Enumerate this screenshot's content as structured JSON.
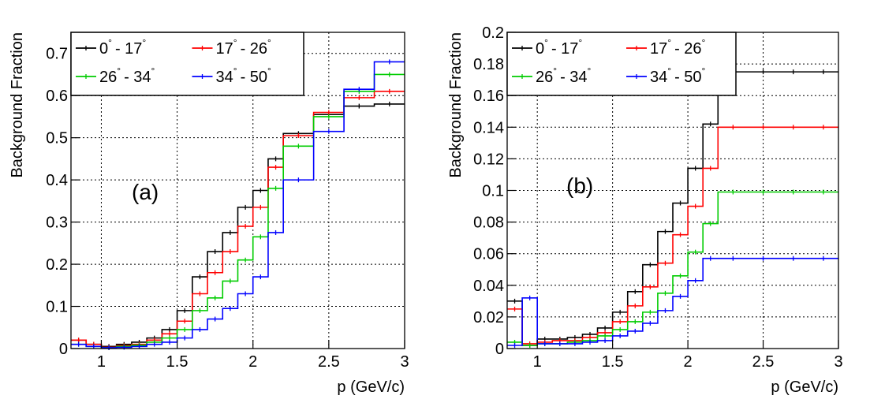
{
  "chart_data": [
    {
      "type": "step",
      "panel_label": "(a)",
      "xlabel": "p (GeV/c)",
      "ylabel": "Background Fraction",
      "xlim": [
        0.8,
        3.0
      ],
      "ylim": [
        0,
        0.75
      ],
      "x_ticks": [
        1,
        1.5,
        2,
        2.5,
        3
      ],
      "x_tick_labels": [
        "1",
        "1.5",
        "2",
        "2.5",
        "3"
      ],
      "y_ticks": [
        0,
        0.1,
        0.2,
        0.3,
        0.4,
        0.5,
        0.6,
        0.7
      ],
      "y_tick_labels": [
        "0",
        "0.1",
        "0.2",
        "0.3",
        "0.4",
        "0.5",
        "0.6",
        "0.7"
      ],
      "grid": true,
      "legend_position": "top-left",
      "bin_edges": [
        0.8,
        0.9,
        1.0,
        1.1,
        1.2,
        1.3,
        1.4,
        1.5,
        1.6,
        1.7,
        1.8,
        1.9,
        2.0,
        2.1,
        2.2,
        2.4,
        2.6,
        2.8,
        3.0
      ],
      "series": [
        {
          "name": "0° - 17°",
          "label_a": "0",
          "label_b": "- 17",
          "color": "#000000",
          "values": [
            0.02,
            0.01,
            0.005,
            0.01,
            0.015,
            0.025,
            0.045,
            0.09,
            0.17,
            0.23,
            0.275,
            0.335,
            0.375,
            0.45,
            0.51,
            0.555,
            0.575,
            0.58
          ]
        },
        {
          "name": "17° - 26°",
          "label_a": "17",
          "label_b": "- 26",
          "color": "#ff0000",
          "values": [
            0.02,
            0.01,
            0.003,
            0.007,
            0.01,
            0.02,
            0.035,
            0.065,
            0.13,
            0.18,
            0.23,
            0.29,
            0.335,
            0.43,
            0.505,
            0.56,
            0.595,
            0.61
          ]
        },
        {
          "name": "26° - 34°",
          "label_a": "26",
          "label_b": "- 34",
          "color": "#00cc00",
          "values": [
            0.01,
            0.005,
            0.002,
            0.005,
            0.008,
            0.015,
            0.025,
            0.045,
            0.09,
            0.12,
            0.16,
            0.21,
            0.265,
            0.38,
            0.48,
            0.55,
            0.61,
            0.65
          ]
        },
        {
          "name": "34° - 50°",
          "label_a": "34",
          "label_b": "- 50",
          "color": "#0000ff",
          "values": [
            0.01,
            0.005,
            0.002,
            0.003,
            0.005,
            0.01,
            0.015,
            0.025,
            0.045,
            0.07,
            0.095,
            0.13,
            0.17,
            0.275,
            0.4,
            0.515,
            0.615,
            0.68
          ]
        }
      ]
    },
    {
      "type": "step",
      "panel_label": "(b)",
      "xlabel": "p (GeV/c)",
      "ylabel": "Background Fraction",
      "xlim": [
        0.8,
        3.0
      ],
      "ylim": [
        0,
        0.2
      ],
      "x_ticks": [
        1,
        1.5,
        2,
        2.5,
        3
      ],
      "x_tick_labels": [
        "1",
        "1.5",
        "2",
        "2.5",
        "3"
      ],
      "y_ticks": [
        0,
        0.02,
        0.04,
        0.06,
        0.08,
        0.1,
        0.12,
        0.14,
        0.16,
        0.18,
        0.2
      ],
      "y_tick_labels": [
        "0",
        "0.02",
        "0.04",
        "0.06",
        "0.08",
        "0.1",
        "0.12",
        "0.14",
        "0.16",
        "0.18",
        "0.2"
      ],
      "grid": true,
      "legend_position": "top-left",
      "bin_edges": [
        0.8,
        0.9,
        1.0,
        1.1,
        1.2,
        1.3,
        1.4,
        1.5,
        1.6,
        1.7,
        1.8,
        1.9,
        2.0,
        2.1,
        2.2,
        2.4,
        2.6,
        2.8,
        3.0
      ],
      "series": [
        {
          "name": "0° - 17°",
          "label_a": "0",
          "label_b": "- 17",
          "color": "#000000",
          "values": [
            0.03,
            0.002,
            0.006,
            0.006,
            0.007,
            0.009,
            0.013,
            0.023,
            0.036,
            0.053,
            0.074,
            0.092,
            0.114,
            0.142,
            0.175,
            0.175,
            0.175,
            0.175
          ]
        },
        {
          "name": "17° - 26°",
          "label_a": "17",
          "label_b": "- 26",
          "color": "#ff0000",
          "values": [
            0.025,
            0.003,
            0.004,
            0.005,
            0.005,
            0.007,
            0.01,
            0.017,
            0.027,
            0.039,
            0.054,
            0.072,
            0.09,
            0.114,
            0.14,
            0.14,
            0.14,
            0.14
          ]
        },
        {
          "name": "26° - 34°",
          "label_a": "26",
          "label_b": "- 34",
          "color": "#00cc00",
          "values": [
            0.004,
            0.002,
            0.003,
            0.003,
            0.004,
            0.005,
            0.008,
            0.012,
            0.017,
            0.023,
            0.035,
            0.046,
            0.061,
            0.079,
            0.099,
            0.099,
            0.099,
            0.099
          ]
        },
        {
          "name": "34° - 50°",
          "label_a": "34",
          "label_b": "- 50",
          "color": "#0000ff",
          "values": [
            0.002,
            0.032,
            0.003,
            0.003,
            0.003,
            0.004,
            0.005,
            0.008,
            0.011,
            0.016,
            0.024,
            0.033,
            0.043,
            0.057,
            0.057,
            0.057,
            0.057,
            0.057
          ]
        }
      ]
    }
  ]
}
